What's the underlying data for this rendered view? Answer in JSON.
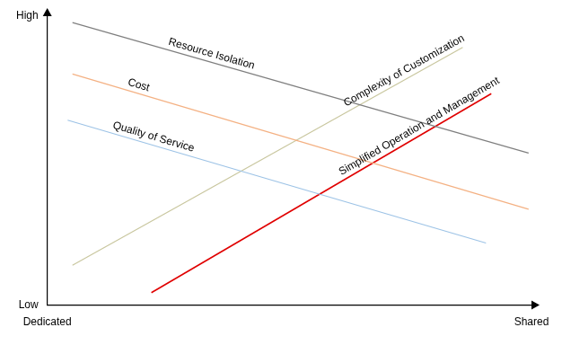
{
  "chart_data": {
    "type": "line",
    "xlim": [
      0,
      100
    ],
    "xticks": [
      {
        "value": 0,
        "label": "Dedicated"
      },
      {
        "value": 100,
        "label": "Shared"
      }
    ],
    "ylim": [
      0,
      100
    ],
    "yticks": [
      {
        "value": 0,
        "label": "Low"
      },
      {
        "value": 100,
        "label": "High"
      }
    ],
    "grid": false,
    "series": [
      {
        "name": "Resource Isolation",
        "color": "#7f7f7f",
        "x": [
          5.2,
          99.4
        ],
        "values": [
          97.8,
          52.6
        ]
      },
      {
        "name": "Cost",
        "color": "#f4b183",
        "x": [
          5.2,
          99.4
        ],
        "values": [
          80,
          33.2
        ]
      },
      {
        "name": "Quality of Service",
        "color": "#9dc3e6",
        "x": [
          4.2,
          90.6
        ],
        "values": [
          64,
          21.5
        ]
      },
      {
        "name": "Complexity of Customization",
        "color": "#c9c79f",
        "x": [
          5.2,
          85.8
        ],
        "values": [
          13.8,
          89.2
        ]
      },
      {
        "name": "Simplified Operation and Management",
        "color": "#e00000",
        "x": [
          21.5,
          91.7
        ],
        "values": [
          4.3,
          73.2
        ]
      }
    ]
  }
}
